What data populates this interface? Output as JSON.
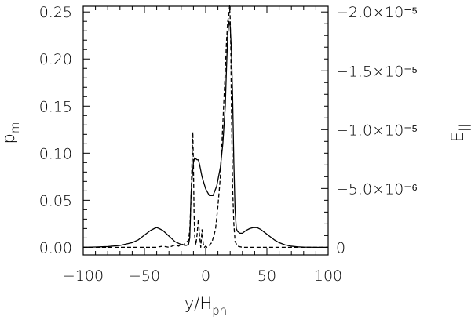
{
  "chart_data": {
    "type": "line",
    "x": {
      "label_main": "y/H",
      "label_sub": "ph",
      "range": [
        -100,
        100
      ],
      "ticks": [
        -100,
        -50,
        0,
        50,
        100
      ],
      "tick_labels": [
        "−100",
        "−50",
        "0",
        "50",
        "100"
      ]
    },
    "y_left": {
      "label_main": "p",
      "label_sub": "m",
      "range": [
        -0.008,
        0.256
      ],
      "ticks": [
        0.0,
        0.05,
        0.1,
        0.15,
        0.2,
        0.25
      ],
      "tick_labels": [
        "0.00",
        "0.05",
        "0.10",
        "0.15",
        "0.20",
        "0.25"
      ]
    },
    "y_right": {
      "label_main": "E",
      "label_sub": "||",
      "range": [
        6.4e-07,
        -2.048e-05
      ],
      "ticks": [
        0,
        -5e-06,
        -1e-05,
        -1.5e-05,
        -2e-05
      ],
      "tick_labels": [
        "0",
        "−5.0×10⁻⁶",
        "−1.0×10⁻⁵",
        "−1.5×10⁻⁵",
        "−2.0×10⁻⁵"
      ]
    },
    "grid": false,
    "series": [
      {
        "axis": "left",
        "style": "solid",
        "x": [
          -100,
          -90,
          -80,
          -70,
          -60,
          -55,
          -50,
          -45,
          -42,
          -40,
          -38,
          -35,
          -30,
          -25,
          -20,
          -16,
          -14,
          -13,
          -12.5,
          -12,
          -11,
          -10,
          -9,
          -8,
          -7,
          -6,
          -5,
          -3,
          0,
          3,
          6,
          9,
          12,
          14,
          16,
          17,
          18,
          19,
          20,
          21,
          22,
          23,
          24,
          25,
          26,
          27,
          28,
          30,
          33,
          36,
          39,
          42,
          45,
          48,
          52,
          56,
          60,
          65,
          70,
          75,
          80,
          90,
          100
        ],
        "y": [
          0.0,
          0.0003,
          0.0008,
          0.002,
          0.005,
          0.008,
          0.013,
          0.018,
          0.02,
          0.021,
          0.02,
          0.018,
          0.012,
          0.006,
          0.003,
          0.002,
          0.003,
          0.01,
          0.03,
          0.055,
          0.075,
          0.09,
          0.095,
          0.094,
          0.093,
          0.093,
          0.088,
          0.075,
          0.062,
          0.055,
          0.055,
          0.065,
          0.085,
          0.11,
          0.15,
          0.19,
          0.225,
          0.24,
          0.235,
          0.21,
          0.16,
          0.09,
          0.04,
          0.02,
          0.017,
          0.016,
          0.015,
          0.015,
          0.018,
          0.02,
          0.021,
          0.021,
          0.019,
          0.016,
          0.012,
          0.008,
          0.005,
          0.0025,
          0.0012,
          0.0005,
          0.0002,
          0.0,
          0.0
        ]
      },
      {
        "axis": "right",
        "style": "dashed",
        "x": [
          -100,
          -60,
          -40,
          -35,
          -30,
          -25,
          -22,
          -20,
          -18,
          -16,
          -14,
          -13,
          -12,
          -11,
          -10.5,
          -10,
          -9.5,
          -9,
          -8,
          -7,
          -6,
          -5,
          -4,
          -3,
          -2,
          -1,
          0,
          1,
          3,
          5,
          8,
          10,
          12,
          14,
          16,
          17,
          18,
          19,
          19.5,
          20,
          20.5,
          21,
          22,
          23,
          24,
          26,
          30,
          40,
          60,
          100
        ],
        "y": [
          0,
          0,
          0,
          -1e-07,
          0,
          -2e-07,
          -1e-07,
          -3e-07,
          -2e-07,
          -4e-07,
          -6e-07,
          -1.5e-06,
          -4e-06,
          -8e-06,
          -9.8e-06,
          -7e-06,
          -3e-06,
          -1e-06,
          -2e-07,
          -1.1e-06,
          -2.4e-06,
          -1e-06,
          0,
          -1.5e-06,
          -3e-07,
          0,
          -1e-07,
          0,
          -2e-07,
          -4e-07,
          -1.5e-06,
          -3.5e-06,
          -6e-06,
          -1.05e-05,
          -1.5e-05,
          -1.75e-05,
          -1.92e-05,
          -1.98e-05,
          -2.05e-05,
          -1.95e-05,
          -1.7e-05,
          -1.2e-05,
          -5e-06,
          -2e-06,
          -5e-07,
          -1e-07,
          0,
          0,
          0,
          0
        ]
      }
    ]
  }
}
